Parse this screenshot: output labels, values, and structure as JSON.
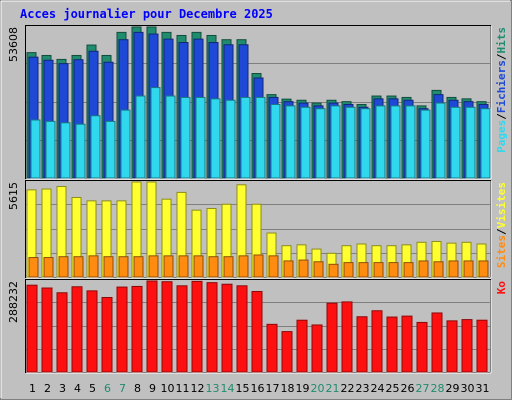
{
  "title": "Acces journalier pour Decembre 2025",
  "colors": {
    "background": "#c0c0c0",
    "title": "#0000ff",
    "hits": "#208c6e",
    "files": "#1e48d6",
    "pages": "#30d8ee",
    "visits": "#ffff30",
    "sites": "#ff8c10",
    "kb": "#ff1010",
    "weekend_day": "#208c6e",
    "weekday": "#000000"
  },
  "chart_data": [
    {
      "type": "bar",
      "name": "panel-hits-files-pages",
      "y_label": "53608",
      "ylim": [
        0,
        53608
      ],
      "legend": [
        {
          "label": "Pages",
          "color": "#30d8ee"
        },
        {
          "label": "/",
          "color": "#000000"
        },
        {
          "label": "Fichiers",
          "color": "#1e48d6"
        },
        {
          "label": "/",
          "color": "#000000"
        },
        {
          "label": "Hits",
          "color": "#208c6e"
        }
      ],
      "categories": [
        "1",
        "2",
        "3",
        "4",
        "5",
        "6",
        "7",
        "8",
        "9",
        "10",
        "11",
        "12",
        "13",
        "14",
        "15",
        "16",
        "17",
        "18",
        "19",
        "20",
        "21",
        "22",
        "23",
        "24",
        "25",
        "26",
        "27",
        "28",
        "29",
        "30",
        "31"
      ],
      "weekend": [
        "6",
        "7",
        "13",
        "14",
        "20",
        "21",
        "27",
        "28"
      ],
      "series": [
        {
          "name": "Hits",
          "values": [
            44510,
            43500,
            42100,
            43500,
            47200,
            43500,
            51700,
            53608,
            53608,
            51700,
            50600,
            51700,
            50600,
            49100,
            49100,
            37100,
            29600,
            28000,
            27600,
            26600,
            27600,
            27100,
            26100,
            29100,
            29100,
            28600,
            25600,
            31100,
            28600,
            28100,
            27100
          ]
        },
        {
          "name": "Fichiers",
          "values": [
            42900,
            41800,
            40600,
            42000,
            45000,
            41100,
            49100,
            51700,
            51100,
            49300,
            48100,
            49300,
            48100,
            47300,
            47300,
            35500,
            28600,
            27100,
            26600,
            25600,
            26600,
            26100,
            25100,
            28100,
            28100,
            27600,
            24600,
            29600,
            27600,
            27100,
            26100
          ]
        },
        {
          "name": "Pages",
          "values": [
            20600,
            20100,
            19600,
            19100,
            22100,
            20100,
            24100,
            29100,
            32100,
            29100,
            28600,
            28600,
            28100,
            27600,
            28600,
            28600,
            26100,
            25600,
            25100,
            24600,
            25600,
            25100,
            24600,
            25600,
            25600,
            25600,
            24100,
            26600,
            25100,
            25100,
            24600
          ]
        }
      ]
    },
    {
      "type": "bar",
      "name": "panel-visits-sites",
      "y_label": "5615",
      "ylim": [
        0,
        5615
      ],
      "legend": [
        {
          "label": "Sites",
          "color": "#ff8c10"
        },
        {
          "label": "/",
          "color": "#000000"
        },
        {
          "label": "Visites",
          "color": "#ffff30"
        }
      ],
      "categories": [
        "1",
        "2",
        "3",
        "4",
        "5",
        "6",
        "7",
        "8",
        "9",
        "10",
        "11",
        "12",
        "13",
        "14",
        "15",
        "16",
        "17",
        "18",
        "19",
        "20",
        "21",
        "22",
        "23",
        "24",
        "25",
        "26",
        "27",
        "28",
        "29",
        "30",
        "31"
      ],
      "series": [
        {
          "name": "Visites",
          "values": [
            5150,
            5200,
            5350,
            4700,
            4500,
            4500,
            4500,
            5615,
            5615,
            4600,
            5000,
            3950,
            4050,
            4300,
            5450,
            4300,
            2600,
            1850,
            1900,
            1650,
            1400,
            1850,
            1950,
            1850,
            1850,
            1900,
            2050,
            2100,
            2000,
            2050,
            1950
          ]
        },
        {
          "name": "Sites",
          "values": [
            1150,
            1150,
            1200,
            1200,
            1250,
            1200,
            1200,
            1200,
            1250,
            1250,
            1250,
            1250,
            1200,
            1200,
            1250,
            1300,
            1250,
            950,
            1000,
            900,
            750,
            850,
            850,
            850,
            850,
            850,
            950,
            900,
            950,
            950,
            950
          ]
        }
      ]
    },
    {
      "type": "bar",
      "name": "panel-kb",
      "y_label": "288232",
      "ylim": [
        0,
        288232
      ],
      "legend": [
        {
          "label": "Ko",
          "color": "#ff1010"
        }
      ],
      "categories": [
        "1",
        "2",
        "3",
        "4",
        "5",
        "6",
        "7",
        "8",
        "9",
        "10",
        "11",
        "12",
        "13",
        "14",
        "15",
        "16",
        "17",
        "18",
        "19",
        "20",
        "21",
        "22",
        "23",
        "24",
        "25",
        "26",
        "27",
        "28",
        "29",
        "30",
        "31"
      ],
      "series": [
        {
          "name": "Ko",
          "values": [
            275000,
            266000,
            251000,
            270000,
            257000,
            236000,
            269000,
            271000,
            288232,
            286000,
            273000,
            287000,
            283000,
            278000,
            273000,
            255000,
            151000,
            128000,
            164000,
            149000,
            218000,
            222000,
            175000,
            194000,
            174000,
            177000,
            157000,
            187000,
            162000,
            166000,
            164000
          ]
        }
      ]
    }
  ]
}
